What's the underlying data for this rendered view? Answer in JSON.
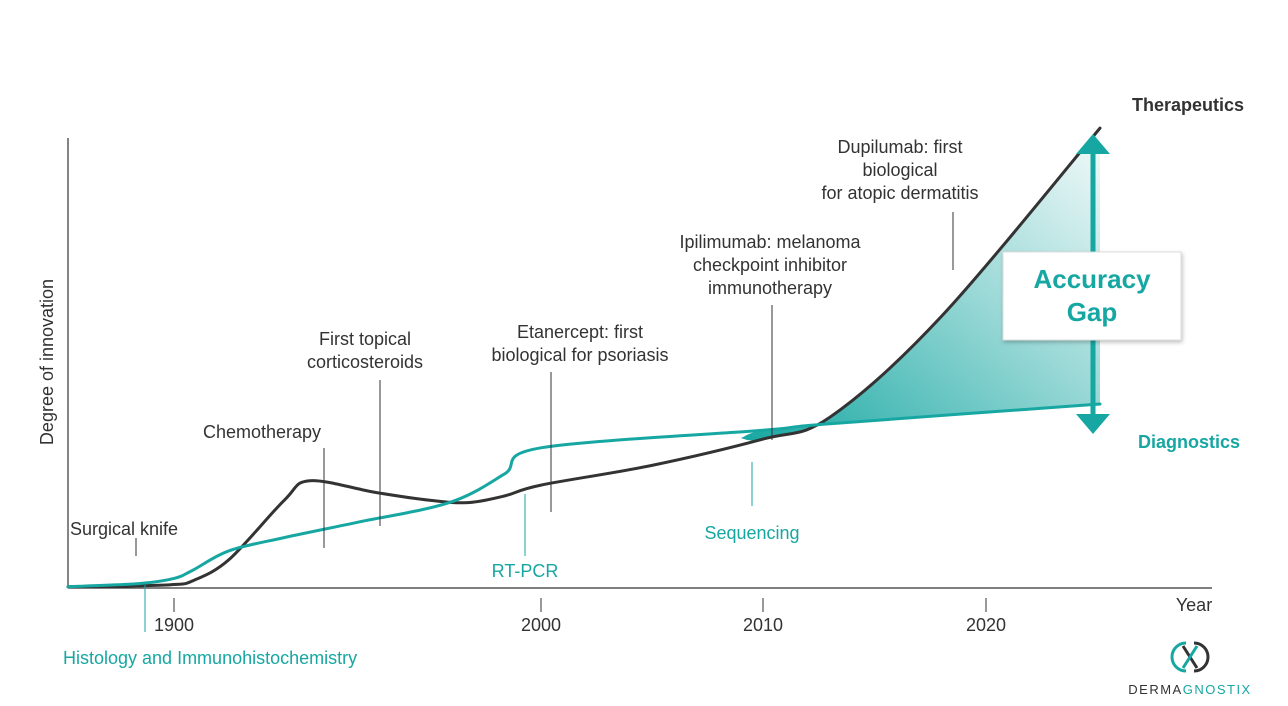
{
  "chart_data": {
    "type": "line",
    "xlabel": "Year",
    "ylabel": "Degree of innovation",
    "x_ticks": [
      {
        "value": 1900,
        "label": "1900"
      },
      {
        "value": 2000,
        "label": "2000"
      },
      {
        "value": 2010,
        "label": "2010"
      },
      {
        "value": 2020,
        "label": "2020"
      }
    ],
    "series": [
      {
        "name": "Therapeutics",
        "color": "#333333",
        "points": [
          [
            1870,
            0.3
          ],
          [
            1890,
            0.5
          ],
          [
            1900,
            0.8
          ],
          [
            1905,
            1.6
          ],
          [
            1915,
            6.5
          ],
          [
            1930,
            20
          ],
          [
            1937,
            24.5
          ],
          [
            1955,
            21.8
          ],
          [
            1970,
            20
          ],
          [
            1980,
            19.5
          ],
          [
            1990,
            21
          ],
          [
            2000,
            23.5
          ],
          [
            2005,
            28
          ],
          [
            2010,
            34
          ],
          [
            2013,
            39
          ],
          [
            2018,
            62
          ],
          [
            2023,
            105
          ]
        ]
      },
      {
        "name": "Diagnostics",
        "color": "#17a7a2",
        "points": [
          [
            1870,
            0.3
          ],
          [
            1890,
            1
          ],
          [
            1900,
            2.2
          ],
          [
            1905,
            4
          ],
          [
            1915,
            8.5
          ],
          [
            1930,
            11.5
          ],
          [
            1950,
            15
          ],
          [
            1975,
            19.5
          ],
          [
            1990,
            26
          ],
          [
            2000,
            32
          ],
          [
            2010,
            36
          ],
          [
            2013,
            37.5
          ],
          [
            2023,
            42
          ]
        ]
      }
    ],
    "therapeutic_milestones": [
      {
        "year": 1893,
        "lines": [
          "Surgical knife"
        ]
      },
      {
        "year": 1933,
        "lines": [
          "Chemotherapy"
        ]
      },
      {
        "year": 1951,
        "lines": [
          "First topical",
          "corticosteroids"
        ]
      },
      {
        "year": 2003,
        "lines": [
          "Etanercept: first",
          "biological for psoriasis"
        ]
      },
      {
        "year": 2011,
        "lines": [
          "Ipilimumab: melanoma",
          "checkpoint inhibitor",
          "immunotherapy"
        ]
      },
      {
        "year": 2019,
        "lines": [
          "Dupilumab: first",
          "biological",
          "for atopic dermatitis"
        ]
      }
    ],
    "diagnostic_milestones": [
      {
        "year": 1893,
        "lines": [
          "Histology and Immunohistochemistry"
        ]
      },
      {
        "year": 1996,
        "lines": [
          "RT-PCR"
        ]
      },
      {
        "year": 2010,
        "lines": [
          "Sequencing"
        ]
      }
    ],
    "gap_annotation": "Accuracy Gap",
    "grid": false,
    "legend": "none"
  },
  "gap_label": {
    "line1": "Accuracy",
    "line2": "Gap"
  },
  "logo": {
    "part1": "DERMA",
    "part2": "GNOSTIX"
  },
  "colors": {
    "teal": "#17a7a2",
    "dark": "#333333",
    "gray_text": "#555555"
  }
}
